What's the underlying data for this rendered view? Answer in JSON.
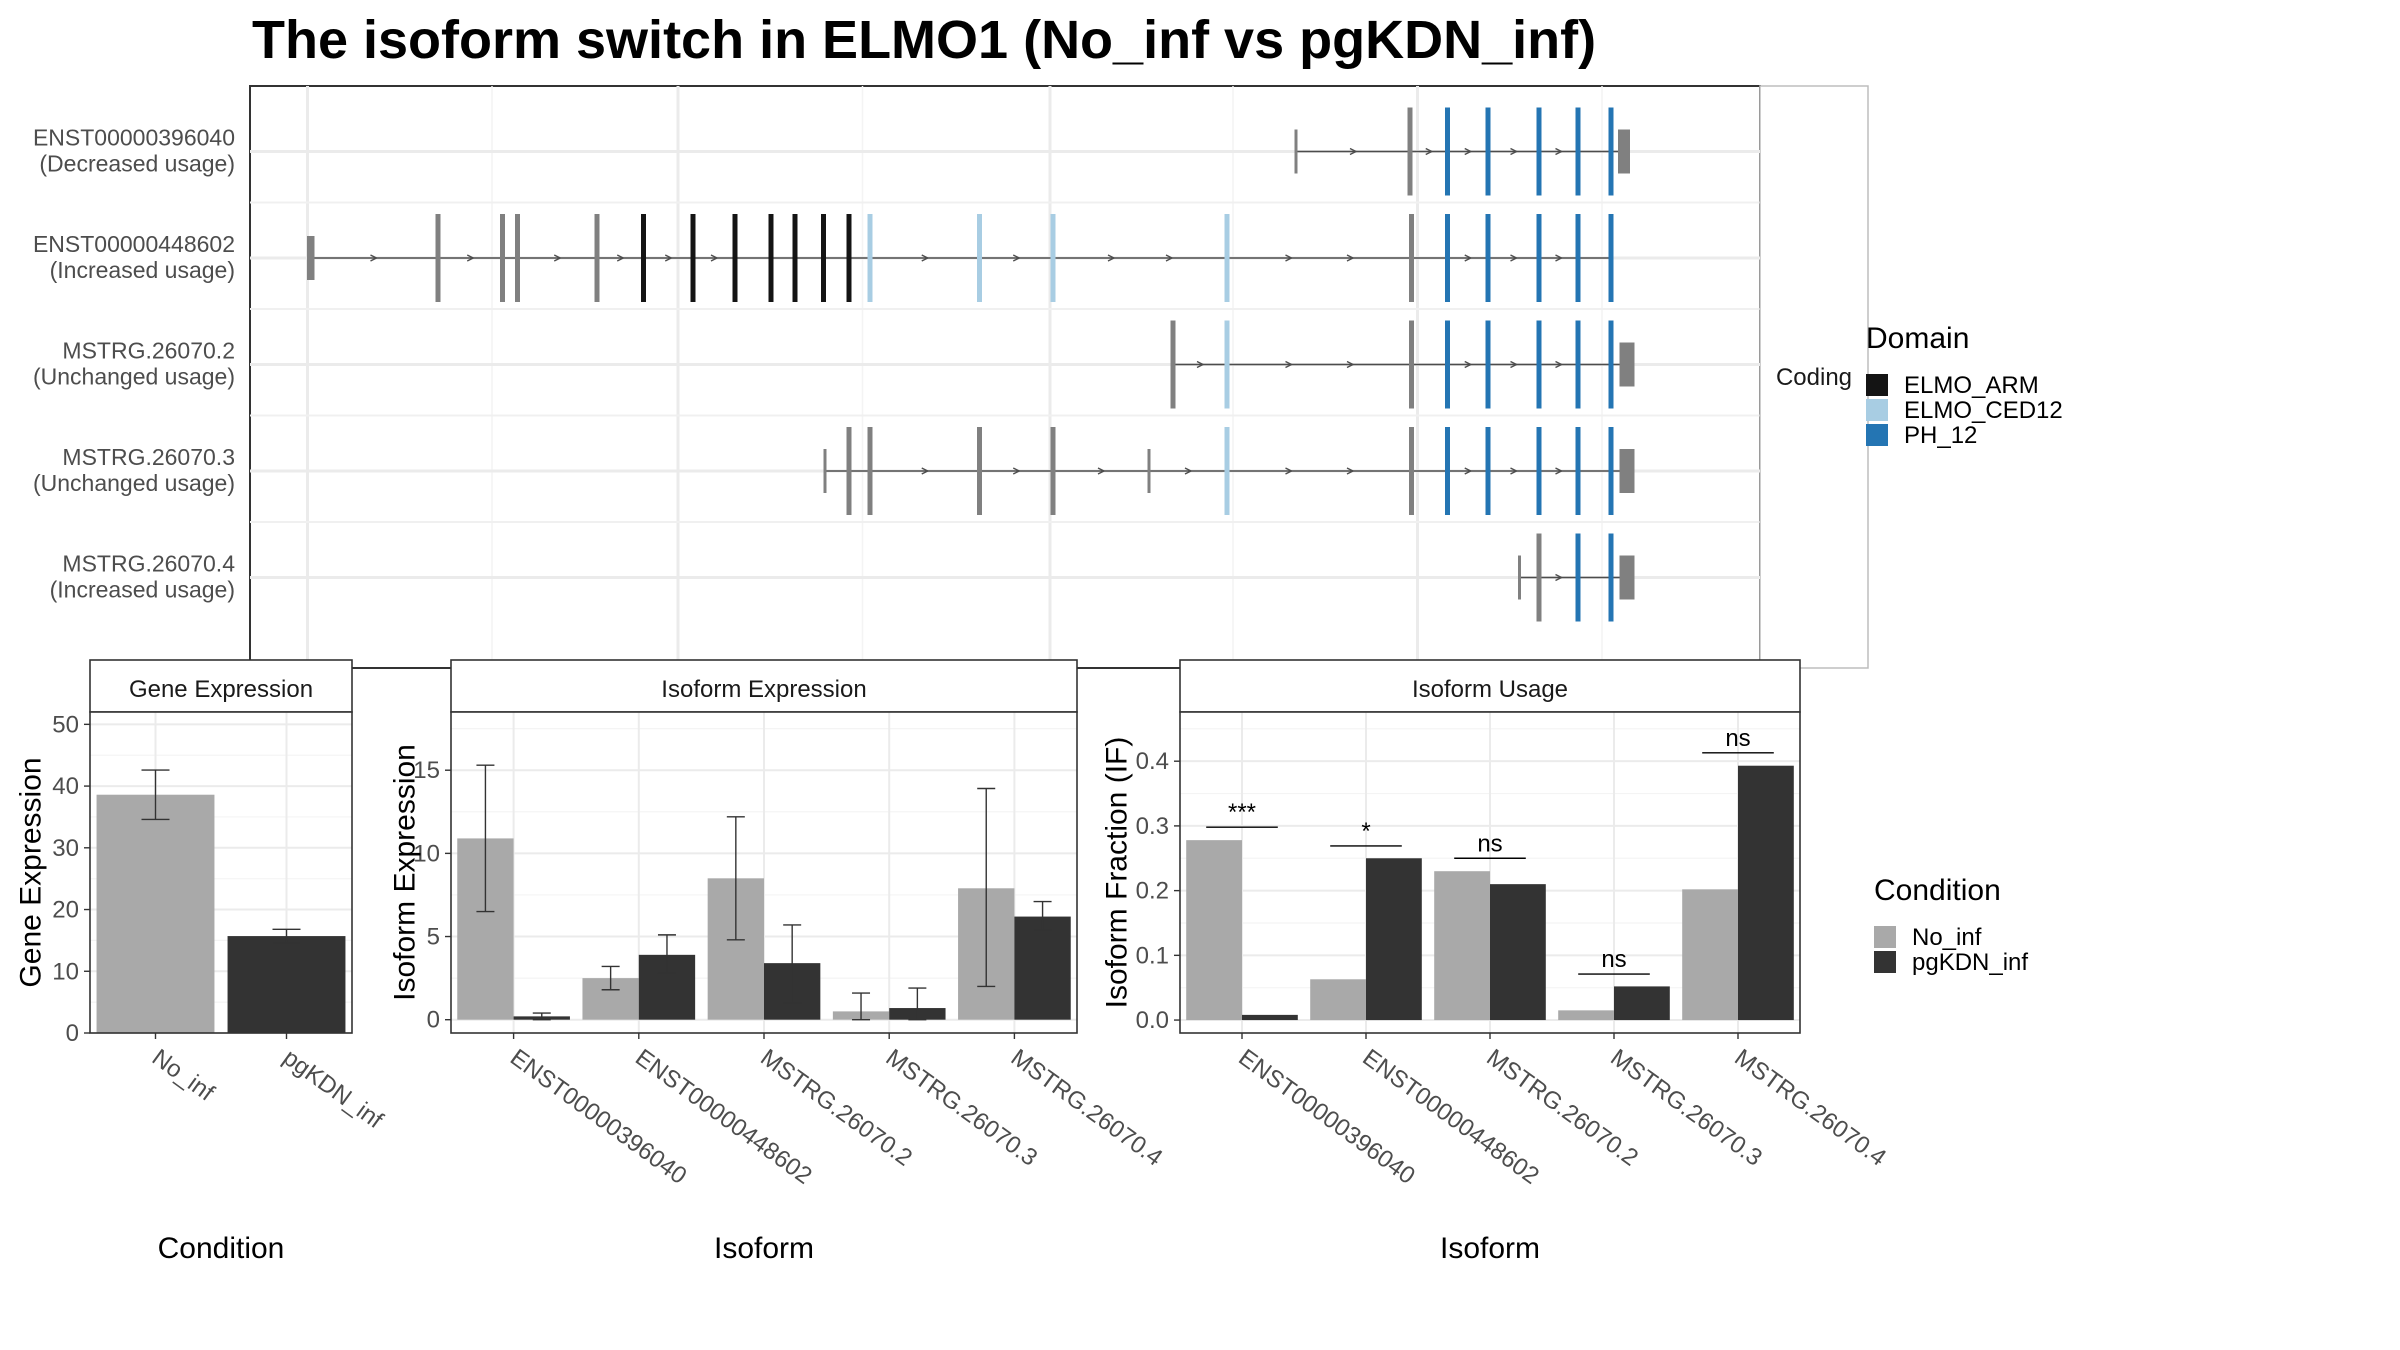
{
  "title": "The isoform switch in ELMO1 (No_inf vs pgKDN_inf)",
  "colors": {
    "no_inf": "#a9a9a9",
    "pgkdn_inf": "#333333",
    "elmo_arm": "#141414",
    "elmo_ced12": "#a8cde3",
    "ph_12": "#2475b3",
    "gray_exon": "#808080",
    "grid": "#ebebeb",
    "frame": "#333333",
    "strip_bg": "#ffffff"
  },
  "structure": {
    "strip_label": "Coding",
    "tracks": [
      {
        "id": "ENST00000396040",
        "usage": "(Decreased usage)",
        "exons": [
          {
            "x": 864,
            "type": "start"
          },
          {
            "x": 940,
            "type": "gray"
          },
          {
            "x": 965,
            "type": "PH_12"
          },
          {
            "x": 992,
            "type": "PH_12"
          },
          {
            "x": 1026,
            "type": "PH_12"
          },
          {
            "x": 1052,
            "type": "PH_12"
          },
          {
            "x": 1074,
            "type": "PH_12"
          },
          {
            "x": 1080,
            "type": "utr",
            "w": 8
          }
        ],
        "span": [
          864,
          1080
        ]
      },
      {
        "id": "ENST00000448602",
        "usage": "(Increased usage)",
        "exons": [
          {
            "x": 206,
            "type": "utr",
            "w": 5
          },
          {
            "x": 292,
            "type": "gray"
          },
          {
            "x": 335,
            "type": "gray"
          },
          {
            "x": 345,
            "type": "gray"
          },
          {
            "x": 398,
            "type": "gray"
          },
          {
            "x": 429,
            "type": "ELMO_ARM"
          },
          {
            "x": 462,
            "type": "ELMO_ARM"
          },
          {
            "x": 490,
            "type": "ELMO_ARM"
          },
          {
            "x": 514,
            "type": "ELMO_ARM"
          },
          {
            "x": 530,
            "type": "ELMO_ARM"
          },
          {
            "x": 549,
            "type": "ELMO_ARM"
          },
          {
            "x": 566,
            "type": "ELMO_ARM"
          },
          {
            "x": 580,
            "type": "ELMO_CED12"
          },
          {
            "x": 653,
            "type": "ELMO_CED12"
          },
          {
            "x": 702,
            "type": "ELMO_CED12"
          },
          {
            "x": 818,
            "type": "ELMO_CED12"
          },
          {
            "x": 941,
            "type": "gray"
          },
          {
            "x": 965,
            "type": "PH_12"
          },
          {
            "x": 992,
            "type": "PH_12"
          },
          {
            "x": 1026,
            "type": "PH_12"
          },
          {
            "x": 1052,
            "type": "PH_12"
          },
          {
            "x": 1074,
            "type": "PH_12"
          }
        ],
        "span": [
          206,
          1074
        ]
      },
      {
        "id": "MSTRG.26070.2",
        "usage": "(Unchanged usage)",
        "exons": [
          {
            "x": 782,
            "type": "gray"
          },
          {
            "x": 818,
            "type": "ELMO_CED12"
          },
          {
            "x": 941,
            "type": "gray"
          },
          {
            "x": 965,
            "type": "PH_12"
          },
          {
            "x": 992,
            "type": "PH_12"
          },
          {
            "x": 1026,
            "type": "PH_12"
          },
          {
            "x": 1052,
            "type": "PH_12"
          },
          {
            "x": 1074,
            "type": "PH_12"
          },
          {
            "x": 1081,
            "type": "utr",
            "w": 10
          }
        ],
        "span": [
          782,
          1081
        ]
      },
      {
        "id": "MSTRG.26070.3",
        "usage": "(Unchanged usage)",
        "exons": [
          {
            "x": 550,
            "type": "start"
          },
          {
            "x": 566,
            "type": "gray"
          },
          {
            "x": 580,
            "type": "gray"
          },
          {
            "x": 653,
            "type": "gray"
          },
          {
            "x": 702,
            "type": "gray"
          },
          {
            "x": 766,
            "type": "start"
          },
          {
            "x": 818,
            "type": "ELMO_CED12"
          },
          {
            "x": 941,
            "type": "gray"
          },
          {
            "x": 965,
            "type": "PH_12"
          },
          {
            "x": 992,
            "type": "PH_12"
          },
          {
            "x": 1026,
            "type": "PH_12"
          },
          {
            "x": 1052,
            "type": "PH_12"
          },
          {
            "x": 1074,
            "type": "PH_12"
          },
          {
            "x": 1081,
            "type": "utr",
            "w": 10
          }
        ],
        "span": [
          550,
          1081
        ]
      },
      {
        "id": "MSTRG.26070.4",
        "usage": "(Increased usage)",
        "exons": [
          {
            "x": 1013,
            "type": "start"
          },
          {
            "x": 1026,
            "type": "gray"
          },
          {
            "x": 1052,
            "type": "PH_12"
          },
          {
            "x": 1074,
            "type": "PH_12"
          },
          {
            "x": 1081,
            "type": "utr",
            "w": 10
          }
        ],
        "span": [
          1013,
          1081
        ]
      }
    ]
  },
  "legend_domain": {
    "title": "Domain",
    "items": [
      {
        "label": "ELMO_ARM",
        "color": "#141414"
      },
      {
        "label": "ELMO_CED12",
        "color": "#a8cde3"
      },
      {
        "label": "PH_12",
        "color": "#2475b3"
      }
    ]
  },
  "legend_condition": {
    "title": "Condition",
    "items": [
      {
        "label": "No_inf",
        "color": "#a9a9a9"
      },
      {
        "label": "pgKDN_inf",
        "color": "#333333"
      }
    ]
  },
  "chart_data": [
    {
      "type": "bar",
      "strip": "Gene Expression",
      "xlabel": "Condition",
      "ylabel": "Gene Expression",
      "categories": [
        "No_inf",
        "pgKDN_inf"
      ],
      "values": [
        38.6,
        15.7
      ],
      "errors": [
        [
          34.6,
          42.6
        ],
        [
          14.6,
          16.8
        ]
      ],
      "ylim": [
        0,
        52
      ],
      "yticks": [
        0,
        10,
        20,
        30,
        40,
        50
      ]
    },
    {
      "type": "bar",
      "strip": "Isoform Expression",
      "xlabel": "Isoform",
      "ylabel": "Isoform Expression",
      "categories": [
        "ENST00000396040",
        "ENST00000448602",
        "MSTRG.26070.2",
        "MSTRG.26070.3",
        "MSTRG.26070.4"
      ],
      "series": [
        {
          "name": "No_inf",
          "values": [
            10.9,
            2.5,
            8.5,
            0.5,
            7.9
          ],
          "errors": [
            [
              6.5,
              15.3
            ],
            [
              1.8,
              3.2
            ],
            [
              4.8,
              12.2
            ],
            [
              0.0,
              1.6
            ],
            [
              2.0,
              13.9
            ]
          ]
        },
        {
          "name": "pgKDN_inf",
          "values": [
            0.2,
            3.9,
            3.4,
            0.7,
            6.2
          ],
          "errors": [
            [
              0.0,
              0.4
            ],
            [
              2.8,
              5.1
            ],
            [
              1.0,
              5.7
            ],
            [
              0.0,
              1.9
            ],
            [
              5.4,
              7.1
            ]
          ]
        }
      ],
      "ylim": [
        -0.8,
        18.5
      ],
      "yticks": [
        0,
        5,
        10,
        15
      ]
    },
    {
      "type": "bar",
      "strip": "Isoform Usage",
      "xlabel": "Isoform",
      "ylabel": "Isoform Fraction (IF)",
      "categories": [
        "ENST00000396040",
        "ENST00000448602",
        "MSTRG.26070.2",
        "MSTRG.26070.3",
        "MSTRG.26070.4"
      ],
      "series": [
        {
          "name": "No_inf",
          "values": [
            0.278,
            0.063,
            0.23,
            0.015,
            0.202
          ]
        },
        {
          "name": "pgKDN_inf",
          "values": [
            0.008,
            0.25,
            0.21,
            0.052,
            0.393
          ]
        }
      ],
      "significance": [
        {
          "label": "***",
          "y": 0.298
        },
        {
          "label": "*",
          "y": 0.269
        },
        {
          "label": "ns",
          "y": 0.25
        },
        {
          "label": "ns",
          "y": 0.071
        },
        {
          "label": "ns",
          "y": 0.413
        }
      ],
      "ylim": [
        -0.02,
        0.476
      ],
      "yticks": [
        0.0,
        0.1,
        0.2,
        0.3,
        0.4
      ]
    }
  ]
}
